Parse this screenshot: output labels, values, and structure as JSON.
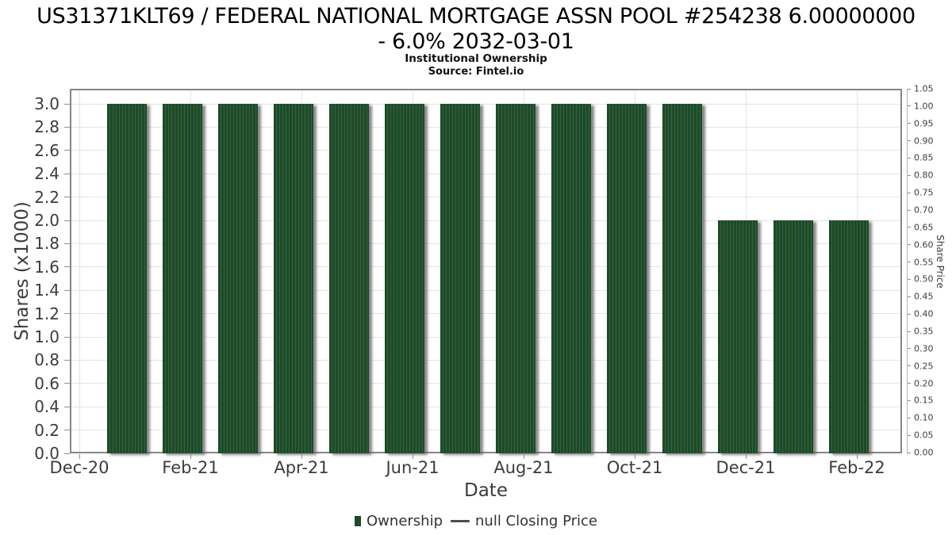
{
  "header": {
    "title_line1": "US31371KLT69 / FEDERAL NATIONAL MORTGAGE ASSN POOL #254238 6.00000000",
    "title_line2": "- 6.0% 2032-03-01",
    "subtitle": "Institutional Ownership",
    "source": "Source: Fintel.io"
  },
  "chart_data": {
    "type": "bar",
    "title": "US31371KLT69 / FEDERAL NATIONAL MORTGAGE ASSN POOL #254238 6.00000000 - 6.0% 2032-03-01",
    "subtitle": "Institutional Ownership",
    "source": "Source: Fintel.io",
    "xlabel": "Date",
    "ylabel_left": "Shares (x1000)",
    "ylabel_right": "Share Price",
    "categories": [
      "Jan-21",
      "Feb-21",
      "Mar-21",
      "Apr-21",
      "May-21",
      "Jun-21",
      "Jul-21",
      "Aug-21",
      "Sep-21",
      "Oct-21",
      "Nov-21",
      "Dec-21",
      "Jan-22",
      "Feb-22"
    ],
    "series": [
      {
        "name": "Ownership",
        "type": "bar",
        "values": [
          3.0,
          3.0,
          3.0,
          3.0,
          3.0,
          3.0,
          3.0,
          3.0,
          3.0,
          3.0,
          3.0,
          2.0,
          2.0,
          2.0
        ]
      },
      {
        "name": "null Closing Price",
        "type": "line",
        "values": []
      }
    ],
    "legend": [
      "Ownership",
      "null Closing Price"
    ],
    "legend_position": "bottom",
    "grid": true,
    "x_tick_labels": [
      "Dec-20",
      "Feb-21",
      "Apr-21",
      "Jun-21",
      "Aug-21",
      "Oct-21",
      "Dec-21",
      "Feb-22"
    ],
    "left_tick_labels": [
      "0.0",
      "0.2",
      "0.4",
      "0.6",
      "0.8",
      "1.0",
      "1.2",
      "1.4",
      "1.6",
      "1.8",
      "2.0",
      "2.2",
      "2.4",
      "2.6",
      "2.8",
      "3.0"
    ],
    "right_tick_labels": [
      "0.00",
      "0.05",
      "0.10",
      "0.15",
      "0.20",
      "0.25",
      "0.30",
      "0.35",
      "0.40",
      "0.45",
      "0.50",
      "0.55",
      "0.60",
      "0.65",
      "0.70",
      "0.75",
      "0.80",
      "0.85",
      "0.90",
      "0.95",
      "1.00",
      "1.05"
    ],
    "ylim_left": [
      0.0,
      3.13
    ],
    "ylim_right": [
      0.0,
      1.05
    ],
    "colors": {
      "bar": "#1d4a28",
      "bar_stripe": "#35633f",
      "bar_shadow": "#696969",
      "grid": "#e4e4e4",
      "frame": "#868686",
      "axis_text": "#3c3c3c",
      "title_text": "#000000"
    }
  }
}
